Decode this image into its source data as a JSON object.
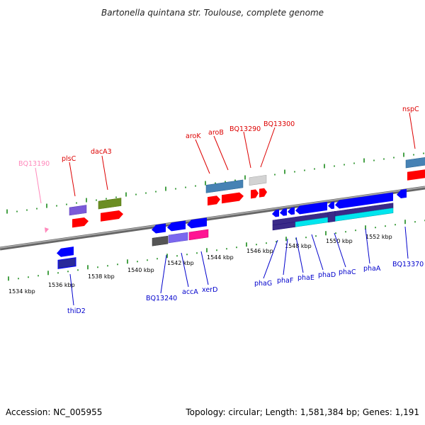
{
  "title": "Bartonella quintana str. Toulouse, complete genome",
  "footer": {
    "accession": "Accession: NC_005955",
    "summary": "Topology: circular; Length: 1,581,384 bp; Genes: 1,191"
  },
  "colors": {
    "background": "#ffffff",
    "backbone": "#808080",
    "tick": "#1a8a1a",
    "forward_label": "#dd0000",
    "reverse_label": "#0000cc",
    "pseudo_label": "#ff88bb"
  },
  "scale": {
    "unit": "kbp",
    "major_labels": [
      "1534 kbp",
      "1536 kbp",
      "1538 kbp",
      "1540 kbp",
      "1542 kbp",
      "1544 kbp",
      "1546 kbp",
      "1548 kbp",
      "1550 kbp",
      "1552 kbp"
    ]
  },
  "genes": {
    "forward": [
      "BQ13190",
      "plsC",
      "dacA3",
      "aroK",
      "aroB",
      "BQ13290",
      "BQ13300",
      "nspC"
    ],
    "reverse": [
      "thiD2",
      "BQ13240",
      "accA",
      "xerD",
      "phaG",
      "phaF",
      "phaE",
      "phaD",
      "phaC",
      "phaA",
      "BQ13370"
    ]
  }
}
